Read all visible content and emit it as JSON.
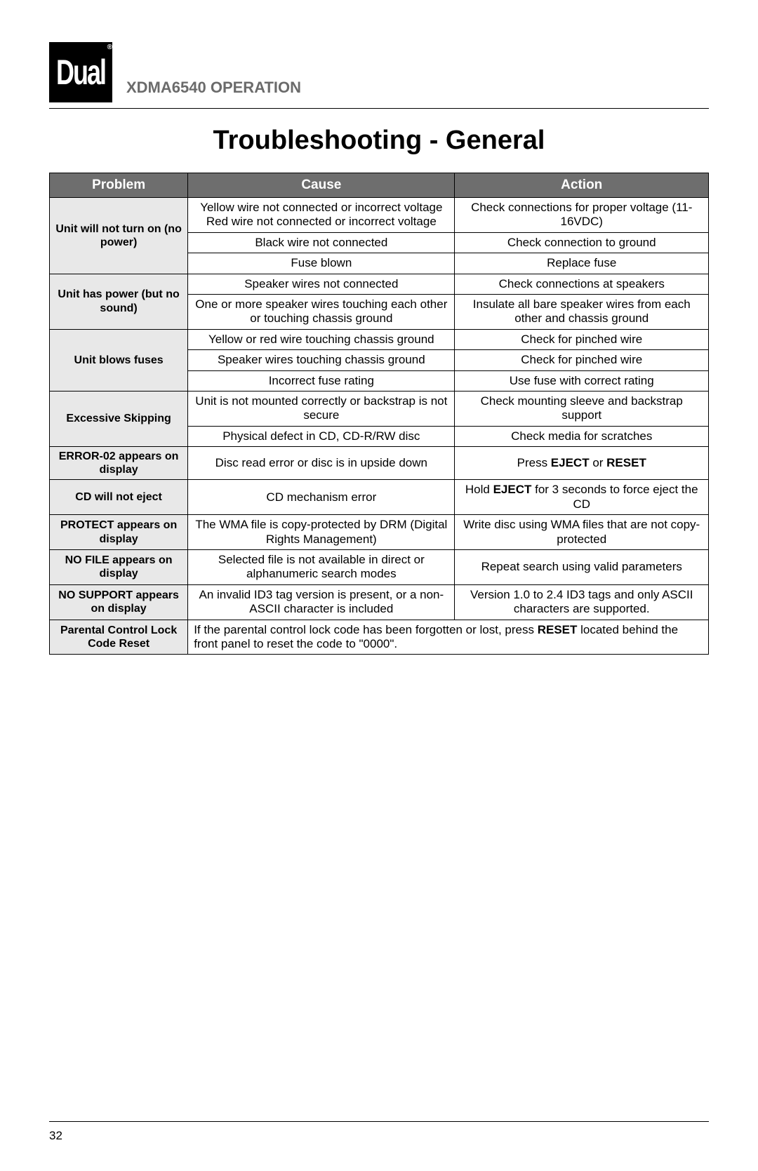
{
  "brand": "Dual",
  "registered": "®",
  "model": "XDMA6540",
  "operation_word": "OPERATION",
  "page_title": "Troubleshooting - General",
  "page_number": "32",
  "table": {
    "header_bg": "#6e6e6e",
    "header_fg": "#ffffff",
    "problem_bg": "#e8e8e8",
    "border_color": "#000000",
    "columns": [
      "Problem",
      "Cause",
      "Action"
    ],
    "rows": [
      {
        "problem": "Unit will not turn on (no power)",
        "problem_rowspan": 3,
        "cause": "Yellow wire not connected or incorrect voltage Red wire not connected or incorrect voltage",
        "action": "Check connections for proper voltage (11-16VDC)"
      },
      {
        "cause": "Black wire not connected",
        "action": "Check connection to ground"
      },
      {
        "cause": "Fuse blown",
        "action": "Replace fuse"
      },
      {
        "problem": "Unit has power (but no sound)",
        "problem_rowspan": 2,
        "cause": "Speaker wires not connected",
        "action": "Check connections at speakers"
      },
      {
        "cause": "One or more speaker wires touching each other or touching chassis ground",
        "action": "Insulate all bare speaker wires from each other and chassis ground"
      },
      {
        "problem": "Unit blows fuses",
        "problem_rowspan": 3,
        "cause": "Yellow or red wire touching chassis ground",
        "action": "Check for pinched wire"
      },
      {
        "cause": "Speaker wires touching chassis ground",
        "action": "Check for pinched wire"
      },
      {
        "cause": "Incorrect fuse rating",
        "action": "Use fuse with correct rating"
      },
      {
        "problem": "Excessive Skipping",
        "problem_rowspan": 2,
        "cause": "Unit is not mounted correctly or backstrap is not secure",
        "action": "Check mounting sleeve and backstrap support"
      },
      {
        "cause": "Physical defect in CD, CD-R/RW disc",
        "action": "Check media for scratches"
      },
      {
        "problem": "ERROR-02 appears on display",
        "cause": "Disc read error or disc is in upside down",
        "action_html": "Press <b>EJECT</b> or <b>RESET</b>"
      },
      {
        "problem": "CD will not eject",
        "cause": "CD mechanism error",
        "action_html": "Hold <b>EJECT</b> for 3 seconds to force eject the CD"
      },
      {
        "problem": "PROTECT appears on display",
        "cause": "The WMA file is copy-protected by DRM (Digital Rights Management)",
        "action": "Write disc using WMA files that are not copy-protected"
      },
      {
        "problem": "NO FILE appears on display",
        "cause": "Selected file is not available in direct or alphanumeric search modes",
        "action": "Repeat search using valid parameters"
      },
      {
        "problem": "NO SUPPORT appears on display",
        "cause": "An invalid ID3 tag version is present, or a non-ASCII character is included",
        "action": "Version 1.0 to 2.4 ID3 tags and only ASCII characters are supported."
      },
      {
        "problem": "Parental Control Lock Code Reset",
        "merged_html": "If the parental control lock code has been forgotten or lost, press <b>RESET</b> located behind the front panel to reset the code to \"0000\".",
        "merged_colspan": 2
      }
    ]
  }
}
